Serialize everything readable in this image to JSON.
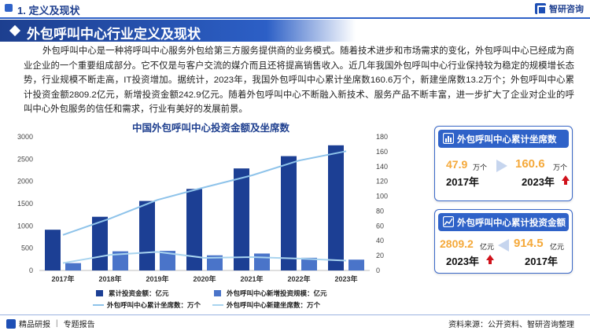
{
  "header": {
    "section_title": "1. 定义及现状",
    "logo_text": "智研咨询"
  },
  "banner": {
    "title": "外包呼叫中心行业定义及现状"
  },
  "intro": "外包呼叫中心是一种将呼叫中心服务外包给第三方服务提供商的业务模式。随着技术进步和市场需求的变化，外包呼叫中心已经成为商业企业的一个重要组成部分。它不仅是与客户交流的媒介而且还将提高销售收入。近几年我国外包呼叫中心行业保持较为稳定的规模增长态势，行业规模不断走高，IT投资增加。据统计，2023年，我国外包呼叫中心累计坐席数160.6万个，新建坐席数13.2万个；外包呼叫中心累计投资金额2809.2亿元，新增投资金额242.9亿元。随着外包呼叫中心不断融入新技术、服务产品不断丰富，进一步扩大了企业对企业的呼叫中心外包服务的信任和需求，行业有美好的发展前景。",
  "chart_data": {
    "type": "bar",
    "title": "中国外包呼叫中心投资金额及坐席数",
    "categories": [
      "2017年",
      "2018年",
      "2019年",
      "2020年",
      "2021年",
      "2022年",
      "2023年"
    ],
    "y_left_ticks": [
      "0",
      "500",
      "1000",
      "1500",
      "2000",
      "2500",
      "3000"
    ],
    "y_right_ticks": [
      "0",
      "20",
      "40",
      "60",
      "80",
      "100",
      "120",
      "140",
      "160",
      "180"
    ],
    "ylim_left": [
      0,
      3000
    ],
    "ylim_right": [
      0,
      180
    ],
    "series": [
      {
        "name": "累计投资金额：亿元",
        "type": "bar",
        "axis": "left",
        "color": "#1c3f94",
        "values": [
          914.5,
          1205,
          1560,
          1830,
          2290,
          2566,
          2809.2
        ]
      },
      {
        "name": "外包呼叫中心新增投资规模：亿元",
        "type": "bar",
        "axis": "left",
        "color": "#4a74c9",
        "values": [
          165,
          430,
          440,
          340,
          380,
          285,
          242.9
        ]
      },
      {
        "name": "外包呼叫中心累计坐席数：万个",
        "type": "line",
        "axis": "right",
        "color": "#8ec3ea",
        "values": [
          47.9,
          70,
          95,
          112,
          128,
          148,
          160.6
        ]
      },
      {
        "name": "外包呼叫中心新建坐席数：万个",
        "type": "line",
        "axis": "right",
        "color": "#a9d4ef",
        "values": [
          10,
          21,
          25,
          17,
          18,
          16,
          13.2
        ]
      }
    ],
    "legend_position": "bottom"
  },
  "card_seats": {
    "title": "外包呼叫中心累计坐席数",
    "left_value": "47.9",
    "left_unit": "万个",
    "left_year": "2017年",
    "right_value": "160.6",
    "right_unit": "万个",
    "right_year": "2023年"
  },
  "card_invest": {
    "title": "外包呼叫中心累计投资金额",
    "left_value": "2809.2",
    "left_unit": "亿元",
    "left_year": "2023年",
    "right_value": "914.5",
    "right_unit": "亿元",
    "right_year": "2017年"
  },
  "colors": {
    "primary": "#2f62c8",
    "dark": "#1d3f8f",
    "accent": "#f5a93a",
    "up": "#d0121b"
  },
  "footer": {
    "left_brand": "精品研报",
    "left_sep": "|",
    "left_text": "专题报告",
    "source": "资料来源：公开资料、智研咨询整理"
  }
}
